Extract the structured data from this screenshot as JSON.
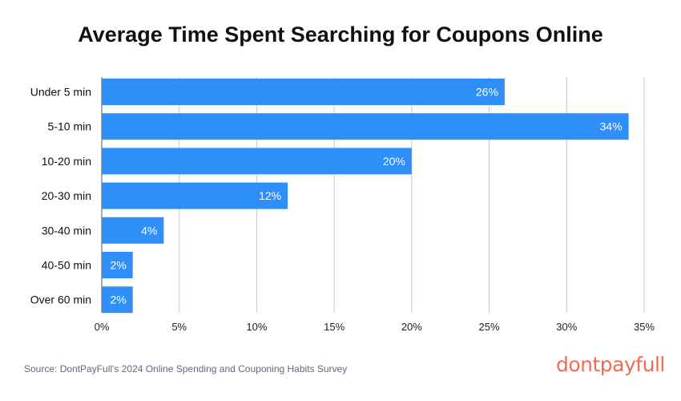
{
  "chart_data": {
    "type": "bar",
    "orientation": "horizontal",
    "title": "Average Time Spent Searching for Coupons Online",
    "categories": [
      "Under 5 min",
      "5-10 min",
      "10-20 min",
      "20-30 min",
      "30-40 min",
      "40-50 min",
      "Over 60 min"
    ],
    "values": [
      26,
      34,
      20,
      12,
      4,
      2,
      2
    ],
    "data_labels": [
      "26%",
      "34%",
      "20%",
      "12%",
      "4%",
      "2%",
      "2%"
    ],
    "xlim": [
      0,
      35
    ],
    "xticks": [
      "0%",
      "5%",
      "10%",
      "15%",
      "20%",
      "25%",
      "30%",
      "35%"
    ],
    "grid": true,
    "bar_color": "#2f8ff8"
  },
  "source": "Source: DontPayFull's 2024 Online Spending and Couponing Habits Survey",
  "logo": "dontpayfull",
  "logo_color": "#f26b55"
}
